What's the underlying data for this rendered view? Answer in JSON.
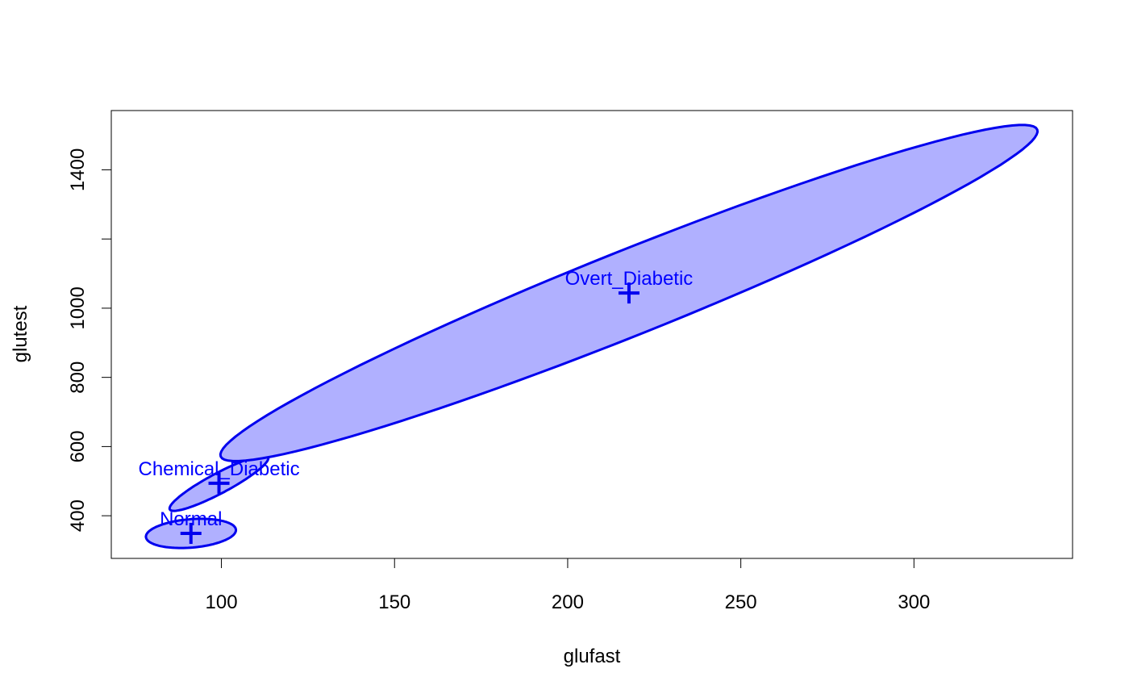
{
  "chart_data": {
    "type": "scatter",
    "title": "",
    "xlabel": "glufast",
    "ylabel": "glutest",
    "xlim": [
      68.2,
      345.8
    ],
    "ylim": [
      276.7,
      1571.3
    ],
    "xticks": [
      100,
      150,
      200,
      250,
      300
    ],
    "yticks": [
      400,
      600,
      800,
      1000,
      1200,
      1400
    ],
    "ytick_labels": [
      "400",
      "600",
      "800",
      "1000",
      "",
      "1400"
    ],
    "grid": false,
    "legend": "none",
    "colors": {
      "stroke": "#0000ee",
      "fill": "#b0b0ff",
      "label": "#0000ff"
    },
    "groups": [
      {
        "label": "Normal",
        "centroid": [
          91.2,
          349.0
        ],
        "ellipse": {
          "center": [
            91.2,
            349.0
          ],
          "a": [
            12.4,
            21.4
          ],
          "b": [
            3.9,
            -36.4
          ]
        }
      },
      {
        "label": "Chemical_Diabetic",
        "centroid": [
          99.3,
          493.9
        ],
        "ellipse": {
          "center": [
            99.3,
            493.9
          ],
          "a": [
            14.2,
            75.6
          ],
          "b": [
            1.4,
            -25.6
          ]
        }
      },
      {
        "label": "Overt_Diabetic",
        "centroid": [
          217.7,
          1043.8
        ],
        "ellipse": {
          "center": [
            217.7,
            1043.8
          ],
          "a": [
            117.5,
            477.8
          ],
          "b": [
            -10.8,
            88.2
          ]
        }
      }
    ]
  }
}
